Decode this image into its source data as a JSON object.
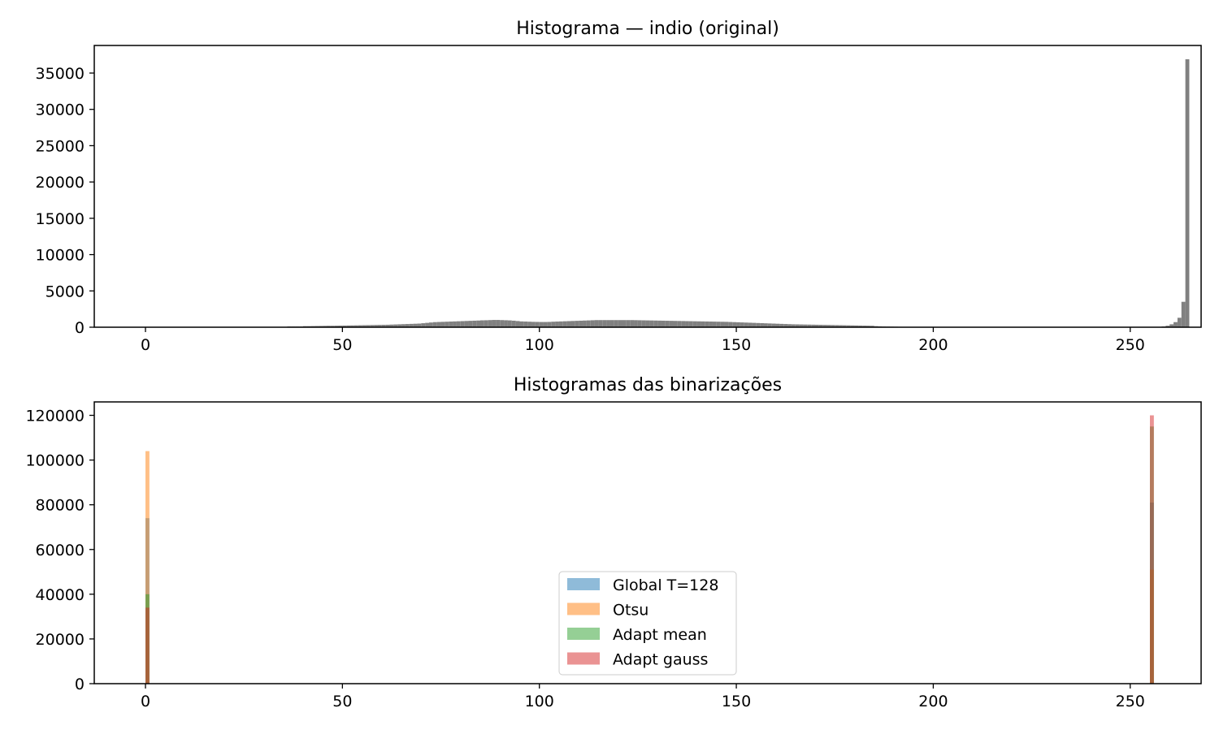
{
  "chart_data": [
    {
      "type": "bar",
      "title": "Histograma — indio (original)",
      "xlabel": "",
      "ylabel": "",
      "xlim": [
        -13,
        268
      ],
      "ylim": [
        0,
        38800
      ],
      "x_ticks": [
        0,
        50,
        100,
        150,
        200,
        250
      ],
      "y_ticks": [
        0,
        5000,
        10000,
        15000,
        20000,
        25000,
        30000,
        35000
      ],
      "grid": false,
      "bar_color": "#808080",
      "series": [
        {
          "bins_start": 0,
          "bin_width": 1,
          "values": [
            50,
            50,
            50,
            50,
            50,
            50,
            50,
            50,
            50,
            50,
            50,
            50,
            50,
            50,
            50,
            50,
            50,
            50,
            50,
            50,
            50,
            50,
            50,
            50,
            50,
            50,
            50,
            50,
            50,
            50,
            50,
            50,
            50,
            50,
            50,
            50,
            100,
            100,
            100,
            100,
            150,
            150,
            160,
            170,
            180,
            190,
            200,
            200,
            210,
            220,
            230,
            240,
            250,
            260,
            270,
            280,
            290,
            300,
            310,
            320,
            330,
            340,
            360,
            380,
            400,
            420,
            440,
            460,
            480,
            500,
            550,
            600,
            650,
            700,
            720,
            740,
            760,
            780,
            800,
            820,
            840,
            860,
            880,
            900,
            920,
            950,
            960,
            980,
            1000,
            1000,
            980,
            960,
            940,
            900,
            850,
            800,
            780,
            760,
            740,
            730,
            720,
            720,
            730,
            760,
            780,
            800,
            820,
            840,
            860,
            880,
            900,
            920,
            940,
            960,
            980,
            980,
            980,
            980,
            980,
            980,
            980,
            980,
            980,
            980,
            970,
            960,
            950,
            940,
            930,
            920,
            910,
            900,
            890,
            880,
            870,
            860,
            850,
            840,
            830,
            820,
            810,
            800,
            790,
            780,
            770,
            760,
            750,
            740,
            720,
            700,
            680,
            660,
            640,
            620,
            600,
            580,
            560,
            540,
            520,
            500,
            480,
            460,
            440,
            420,
            400,
            390,
            380,
            370,
            360,
            350,
            340,
            330,
            320,
            310,
            300,
            290,
            280,
            270,
            260,
            250,
            240,
            230,
            220,
            210,
            200,
            150,
            120,
            100,
            90,
            80,
            70,
            60,
            50,
            50,
            50,
            50,
            50,
            50,
            50,
            50,
            50,
            50,
            50,
            50,
            50,
            50,
            50,
            50,
            50,
            50,
            50,
            50,
            50,
            50,
            50,
            50,
            50,
            50,
            50,
            50,
            50,
            50,
            50,
            50,
            50,
            50,
            50,
            50,
            50,
            50,
            50,
            50,
            50,
            50,
            50,
            50,
            50,
            50,
            50,
            50,
            50,
            50,
            50,
            50,
            50,
            50,
            50,
            50,
            50,
            50,
            50,
            50,
            50,
            50,
            50,
            50,
            50,
            50,
            100,
            200,
            400,
            700,
            1300,
            3500,
            36900
          ]
        }
      ]
    },
    {
      "type": "bar",
      "title": "Histogramas das binarizações",
      "xlabel": "",
      "ylabel": "",
      "xlim": [
        -13,
        268
      ],
      "ylim": [
        0,
        126000
      ],
      "x_ticks": [
        0,
        50,
        100,
        150,
        200,
        250
      ],
      "y_ticks": [
        0,
        20000,
        40000,
        60000,
        80000,
        100000,
        120000
      ],
      "grid": false,
      "legend_position": "center",
      "bar_width": 1,
      "series": [
        {
          "name": "Global T=128",
          "color": "#1f77b4",
          "x": [
            0,
            255
          ],
          "values": [
            74000,
            81000
          ]
        },
        {
          "name": "Otsu",
          "color": "#ff7f0e",
          "x": [
            0,
            255
          ],
          "values": [
            104000,
            51000
          ]
        },
        {
          "name": "Adapt mean",
          "color": "#2ca02c",
          "x": [
            0,
            255
          ],
          "values": [
            40000,
            115000
          ]
        },
        {
          "name": "Adapt gauss",
          "color": "#d62728",
          "x": [
            0,
            255
          ],
          "values": [
            34000,
            120000
          ]
        }
      ]
    }
  ]
}
